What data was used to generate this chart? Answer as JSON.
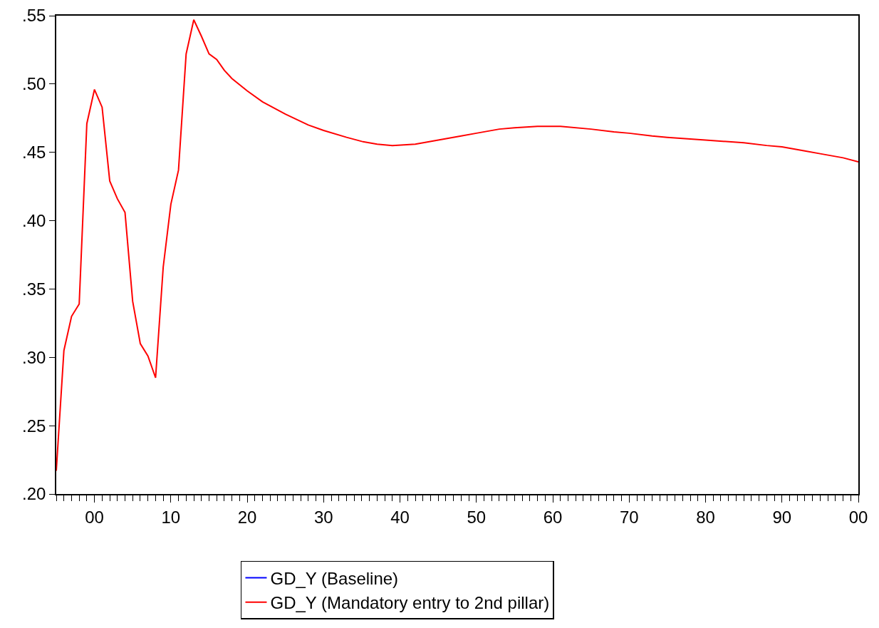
{
  "chart_data": {
    "type": "line",
    "x": [
      1995,
      1996,
      1997,
      1998,
      1999,
      2000,
      2001,
      2002,
      2003,
      2004,
      2005,
      2006,
      2007,
      2008,
      2009,
      2010,
      2011,
      2012,
      2013,
      2014,
      2015,
      2016,
      2017,
      2018,
      2020,
      2022,
      2025,
      2028,
      2030,
      2033,
      2035,
      2037,
      2039,
      2042,
      2045,
      2048,
      2050,
      2053,
      2055,
      2058,
      2061,
      2065,
      2068,
      2070,
      2073,
      2075,
      2080,
      2085,
      2088,
      2090,
      2093,
      2095,
      2098,
      2100
    ],
    "series": [
      {
        "name": "GD_Y (Baseline)",
        "color": "#0000ff",
        "values": [
          null,
          null,
          null,
          null,
          null,
          null,
          null,
          null,
          null,
          null,
          null,
          null,
          null,
          null,
          null,
          null,
          null,
          null,
          null,
          null,
          null,
          null,
          null,
          null,
          null,
          null,
          null,
          null,
          null,
          null,
          null,
          null,
          null,
          null,
          null,
          null,
          null,
          null,
          null,
          null,
          null,
          null,
          null,
          null,
          null,
          null,
          null,
          null,
          null,
          null,
          null,
          null,
          null,
          null
        ]
      },
      {
        "name": "GD_Y (Mandatory entry to 2nd pillar)",
        "color": "#ff0000",
        "values": [
          0.217,
          0.305,
          0.33,
          0.339,
          0.471,
          0.496,
          0.483,
          0.429,
          0.416,
          0.406,
          0.341,
          0.31,
          0.301,
          0.285,
          0.366,
          0.412,
          0.437,
          0.522,
          0.547,
          0.535,
          0.522,
          0.518,
          0.51,
          0.504,
          0.495,
          0.487,
          0.478,
          0.47,
          0.466,
          0.461,
          0.458,
          0.456,
          0.455,
          0.456,
          0.459,
          0.462,
          0.464,
          0.467,
          0.468,
          0.469,
          0.469,
          0.467,
          0.465,
          0.464,
          0.462,
          0.461,
          0.459,
          0.457,
          0.455,
          0.454,
          0.451,
          0.449,
          0.446,
          0.443
        ]
      }
    ],
    "xlim": [
      1995,
      2100
    ],
    "xticks": [
      {
        "value": 2000,
        "label": "00"
      },
      {
        "value": 2010,
        "label": "10"
      },
      {
        "value": 2020,
        "label": "20"
      },
      {
        "value": 2030,
        "label": "30"
      },
      {
        "value": 2040,
        "label": "40"
      },
      {
        "value": 2050,
        "label": "50"
      },
      {
        "value": 2060,
        "label": "60"
      },
      {
        "value": 2070,
        "label": "70"
      },
      {
        "value": 2080,
        "label": "80"
      },
      {
        "value": 2090,
        "label": "90"
      },
      {
        "value": 2100,
        "label": "00"
      }
    ],
    "ylim": [
      0.2,
      0.55
    ],
    "yticks": [
      {
        "value": 0.2,
        "label": ".20"
      },
      {
        "value": 0.25,
        "label": ".25"
      },
      {
        "value": 0.3,
        "label": ".30"
      },
      {
        "value": 0.35,
        "label": ".35"
      },
      {
        "value": 0.4,
        "label": ".40"
      },
      {
        "value": 0.45,
        "label": ".45"
      },
      {
        "value": 0.5,
        "label": ".50"
      },
      {
        "value": 0.55,
        "label": ".55"
      }
    ],
    "grid": false,
    "legend": "bottom",
    "line_style": "solid",
    "marker": "none"
  }
}
